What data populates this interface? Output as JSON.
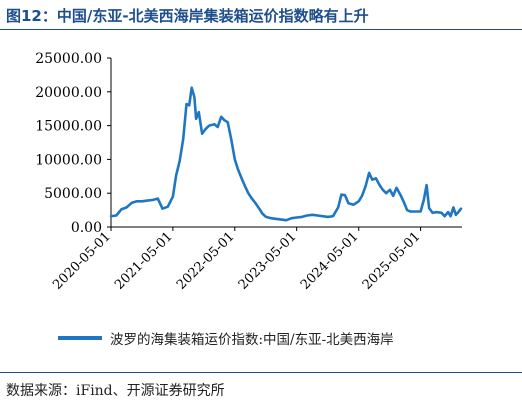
{
  "title": "图12：中国/东亚-北美西海岸集装箱运价指数略有上升",
  "source": "数据来源：iFind、开源证券研究所",
  "chart_data": {
    "type": "line",
    "title": "图12：中国/东亚-北美西海岸集装箱运价指数略有上升",
    "xlabel": "",
    "ylabel": "",
    "ylim": [
      0,
      25000
    ],
    "yticks": [
      "0.00",
      "5000.00",
      "10000.00",
      "15000.00",
      "20000.00",
      "25000.00"
    ],
    "xticks": [
      "2020-05-01",
      "2021-05-01",
      "2022-05-01",
      "2023-05-01",
      "2024-05-01",
      "2025-05-01"
    ],
    "xlim": [
      "2020-05-01",
      "2025-12-31"
    ],
    "grid": false,
    "legend_position": "bottom",
    "color": "#1f77c4",
    "series": [
      {
        "name": "波罗的海集装箱运价指数:中国/东亚-北美西海岸",
        "x": [
          "2020-05-01",
          "2020-06-01",
          "2020-07-01",
          "2020-08-01",
          "2020-09-01",
          "2020-10-01",
          "2020-11-01",
          "2020-12-01",
          "2021-01-01",
          "2021-02-01",
          "2021-03-01",
          "2021-04-01",
          "2021-05-01",
          "2021-05-20",
          "2021-06-10",
          "2021-07-01",
          "2021-07-20",
          "2021-08-05",
          "2021-08-20",
          "2021-09-05",
          "2021-09-15",
          "2021-10-01",
          "2021-10-20",
          "2021-11-10",
          "2021-12-01",
          "2022-01-01",
          "2022-01-20",
          "2022-02-10",
          "2022-03-01",
          "2022-03-20",
          "2022-04-10",
          "2022-05-01",
          "2022-05-20",
          "2022-06-10",
          "2022-07-01",
          "2022-07-20",
          "2022-08-10",
          "2022-09-01",
          "2022-09-20",
          "2022-10-10",
          "2022-11-01",
          "2022-12-01",
          "2023-01-01",
          "2023-02-01",
          "2023-03-01",
          "2023-04-01",
          "2023-05-01",
          "2023-06-01",
          "2023-07-01",
          "2023-08-01",
          "2023-09-01",
          "2023-10-01",
          "2023-11-01",
          "2023-12-01",
          "2024-01-01",
          "2024-01-20",
          "2024-02-10",
          "2024-03-01",
          "2024-04-01",
          "2024-05-01",
          "2024-05-20",
          "2024-06-10",
          "2024-07-01",
          "2024-07-20",
          "2024-08-10",
          "2024-09-01",
          "2024-09-20",
          "2024-10-10",
          "2024-11-01",
          "2024-11-20",
          "2024-12-10",
          "2025-01-01",
          "2025-01-20",
          "2025-02-10",
          "2025-03-01",
          "2025-04-01",
          "2025-05-01",
          "2025-05-20",
          "2025-06-05",
          "2025-06-20",
          "2025-07-10",
          "2025-08-01",
          "2025-09-01",
          "2025-09-20",
          "2025-10-10",
          "2025-10-25",
          "2025-11-10",
          "2025-11-25",
          "2025-12-10",
          "2025-12-25"
        ],
        "y": [
          1600,
          1700,
          2600,
          2900,
          3600,
          3800,
          3800,
          3900,
          4000,
          4200,
          2700,
          3000,
          4500,
          7600,
          9800,
          13000,
          18200,
          18000,
          20600,
          19200,
          16000,
          17000,
          13800,
          14500,
          15000,
          15200,
          14800,
          16300,
          15800,
          15500,
          13000,
          10000,
          8500,
          7200,
          6000,
          5000,
          4200,
          3500,
          2800,
          2000,
          1500,
          1300,
          1200,
          1100,
          1000,
          1300,
          1400,
          1500,
          1700,
          1800,
          1700,
          1600,
          1500,
          1600,
          2900,
          4800,
          4700,
          3500,
          3300,
          3800,
          4600,
          6000,
          8000,
          7000,
          7200,
          6200,
          5500,
          5000,
          5500,
          4600,
          5800,
          4800,
          3800,
          2500,
          2300,
          2300,
          2300,
          4000,
          6200,
          2800,
          2100,
          2200,
          2100,
          1600,
          2200,
          1600,
          2900,
          1800,
          2200,
          2700
        ]
      }
    ]
  }
}
